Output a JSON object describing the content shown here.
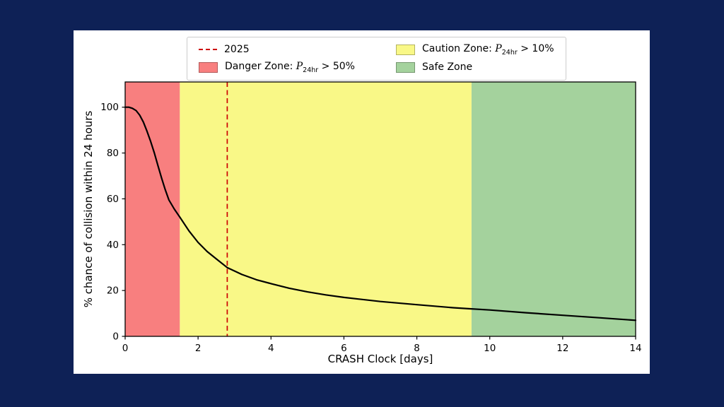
{
  "window": {
    "background": "#0e2156",
    "card_background": "#ffffff"
  },
  "chart_data": {
    "type": "line",
    "title": "",
    "xlabel": "CRASH Clock [days]",
    "ylabel": "% chance of collision within 24 hours",
    "xlim": [
      0,
      14
    ],
    "ylim": [
      0,
      111
    ],
    "xticks": [
      0,
      2,
      4,
      6,
      8,
      10,
      12,
      14
    ],
    "yticks": [
      0,
      20,
      40,
      60,
      80,
      100
    ],
    "grid": false,
    "legend_position": "top-center",
    "zones": [
      {
        "id": "danger",
        "label": "Danger Zone",
        "from": 0,
        "to": 1.5,
        "color": "#f87f7f"
      },
      {
        "id": "caution",
        "label": "Caution Zone",
        "from": 1.5,
        "to": 9.5,
        "color": "#f9f887"
      },
      {
        "id": "safe",
        "label": "Safe Zone",
        "from": 9.5,
        "to": 14,
        "color": "#a4d29d"
      }
    ],
    "vline": {
      "x": 2.8,
      "label": "2025",
      "color": "#cc0000",
      "style": "dashed"
    },
    "series": [
      {
        "name": "collision-probability",
        "color": "#000000",
        "width": 2.2,
        "x": [
          0,
          0.1,
          0.2,
          0.3,
          0.4,
          0.5,
          0.6,
          0.7,
          0.8,
          0.9,
          1.0,
          1.1,
          1.2,
          1.35,
          1.5,
          1.75,
          2.0,
          2.25,
          2.5,
          2.8,
          3.2,
          3.6,
          4.0,
          4.5,
          5.0,
          5.5,
          6.0,
          7.0,
          8.0,
          9.0,
          9.5,
          10.0,
          11.0,
          12.0,
          13.0,
          14.0
        ],
        "y": [
          100,
          100,
          99.5,
          98.5,
          96.5,
          93.5,
          89.5,
          85,
          80,
          74.5,
          69,
          64,
          59.5,
          55.5,
          52,
          46,
          41,
          37,
          33.8,
          30,
          27,
          24.7,
          23,
          21,
          19.4,
          18.1,
          17,
          15.2,
          13.8,
          12.5,
          12,
          11.5,
          10.3,
          9.2,
          8.1,
          7
        ]
      }
    ],
    "legend": {
      "items": [
        {
          "id": "2025",
          "marker": "dashed-line",
          "color": "#cc0000",
          "text": "2025",
          "parts": [
            {
              "t": "2025"
            }
          ]
        },
        {
          "id": "danger",
          "marker": "patch",
          "color": "#f87f7f",
          "text": "Danger Zone: P24hr > 50%",
          "parts": [
            {
              "t": "Danger Zone: "
            },
            {
              "i": "P"
            },
            {
              "sub": "24hr"
            },
            {
              "t": " > 50%"
            }
          ]
        },
        {
          "id": "caution",
          "marker": "patch",
          "color": "#f9f887",
          "text": "Caution Zone: P24hr > 10%",
          "parts": [
            {
              "t": "Caution Zone: "
            },
            {
              "i": "P"
            },
            {
              "sub": "24hr"
            },
            {
              "t": " > 10%"
            }
          ]
        },
        {
          "id": "safe",
          "marker": "patch",
          "color": "#a4d29d",
          "text": "Safe Zone",
          "parts": [
            {
              "t": "Safe Zone"
            }
          ]
        }
      ]
    }
  }
}
